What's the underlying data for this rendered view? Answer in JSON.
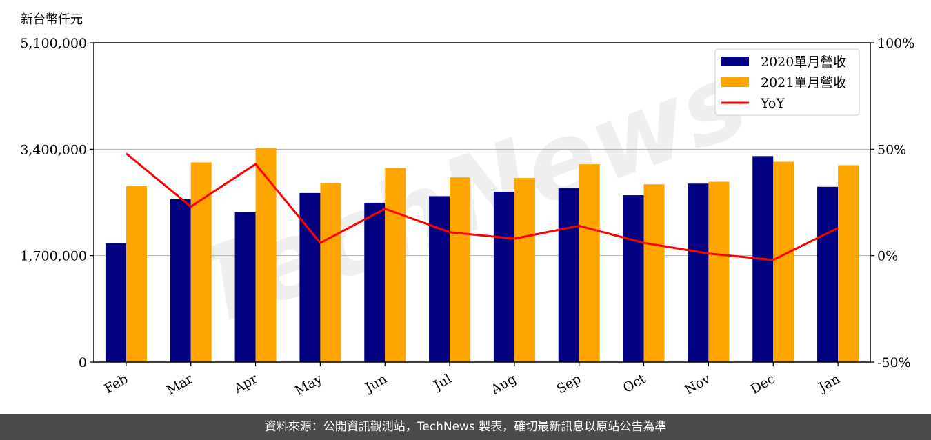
{
  "unit_label": "新台幣仟元",
  "footer_text": "資料來源：公開資訊觀測站，TechNews 製表，確切最新訊息以原站公告為準",
  "watermark_text": "TechNews",
  "colors": {
    "series2020": "#000080",
    "series2021": "#FFA500",
    "yoy": "#FF0000",
    "footer_bg": "#4a4a4a"
  },
  "chart_data": {
    "type": "bar",
    "categories": [
      "Feb",
      "Mar",
      "Apr",
      "May",
      "Jun",
      "Jul",
      "Aug",
      "Sep",
      "Oct",
      "Nov",
      "Dec",
      "Jan"
    ],
    "series": [
      {
        "name": "2020單月營收",
        "values": [
          1900000,
          2600000,
          2390000,
          2700000,
          2545000,
          2650000,
          2720000,
          2780000,
          2665000,
          2850000,
          3290000,
          2800000
        ]
      },
      {
        "name": "2021單月營收",
        "values": [
          2810000,
          3190000,
          3420000,
          2860000,
          3100000,
          2950000,
          2940000,
          3160000,
          2840000,
          2880000,
          3200000,
          3145000
        ]
      }
    ],
    "line_series": {
      "name": "YoY",
      "axis": "right",
      "values": [
        48,
        23,
        43,
        6,
        22,
        11,
        8,
        14,
        6,
        1,
        -2,
        13
      ]
    },
    "ylim": [
      0,
      5100000
    ],
    "yticks": [
      "0",
      "1,700,000",
      "3,400,000",
      "5,100,000"
    ],
    "y2lim": [
      -50,
      100
    ],
    "y2ticks": [
      "-50%",
      "0%",
      "50%",
      "100%"
    ],
    "grid": "horizontal",
    "legend_position": "top-right"
  }
}
